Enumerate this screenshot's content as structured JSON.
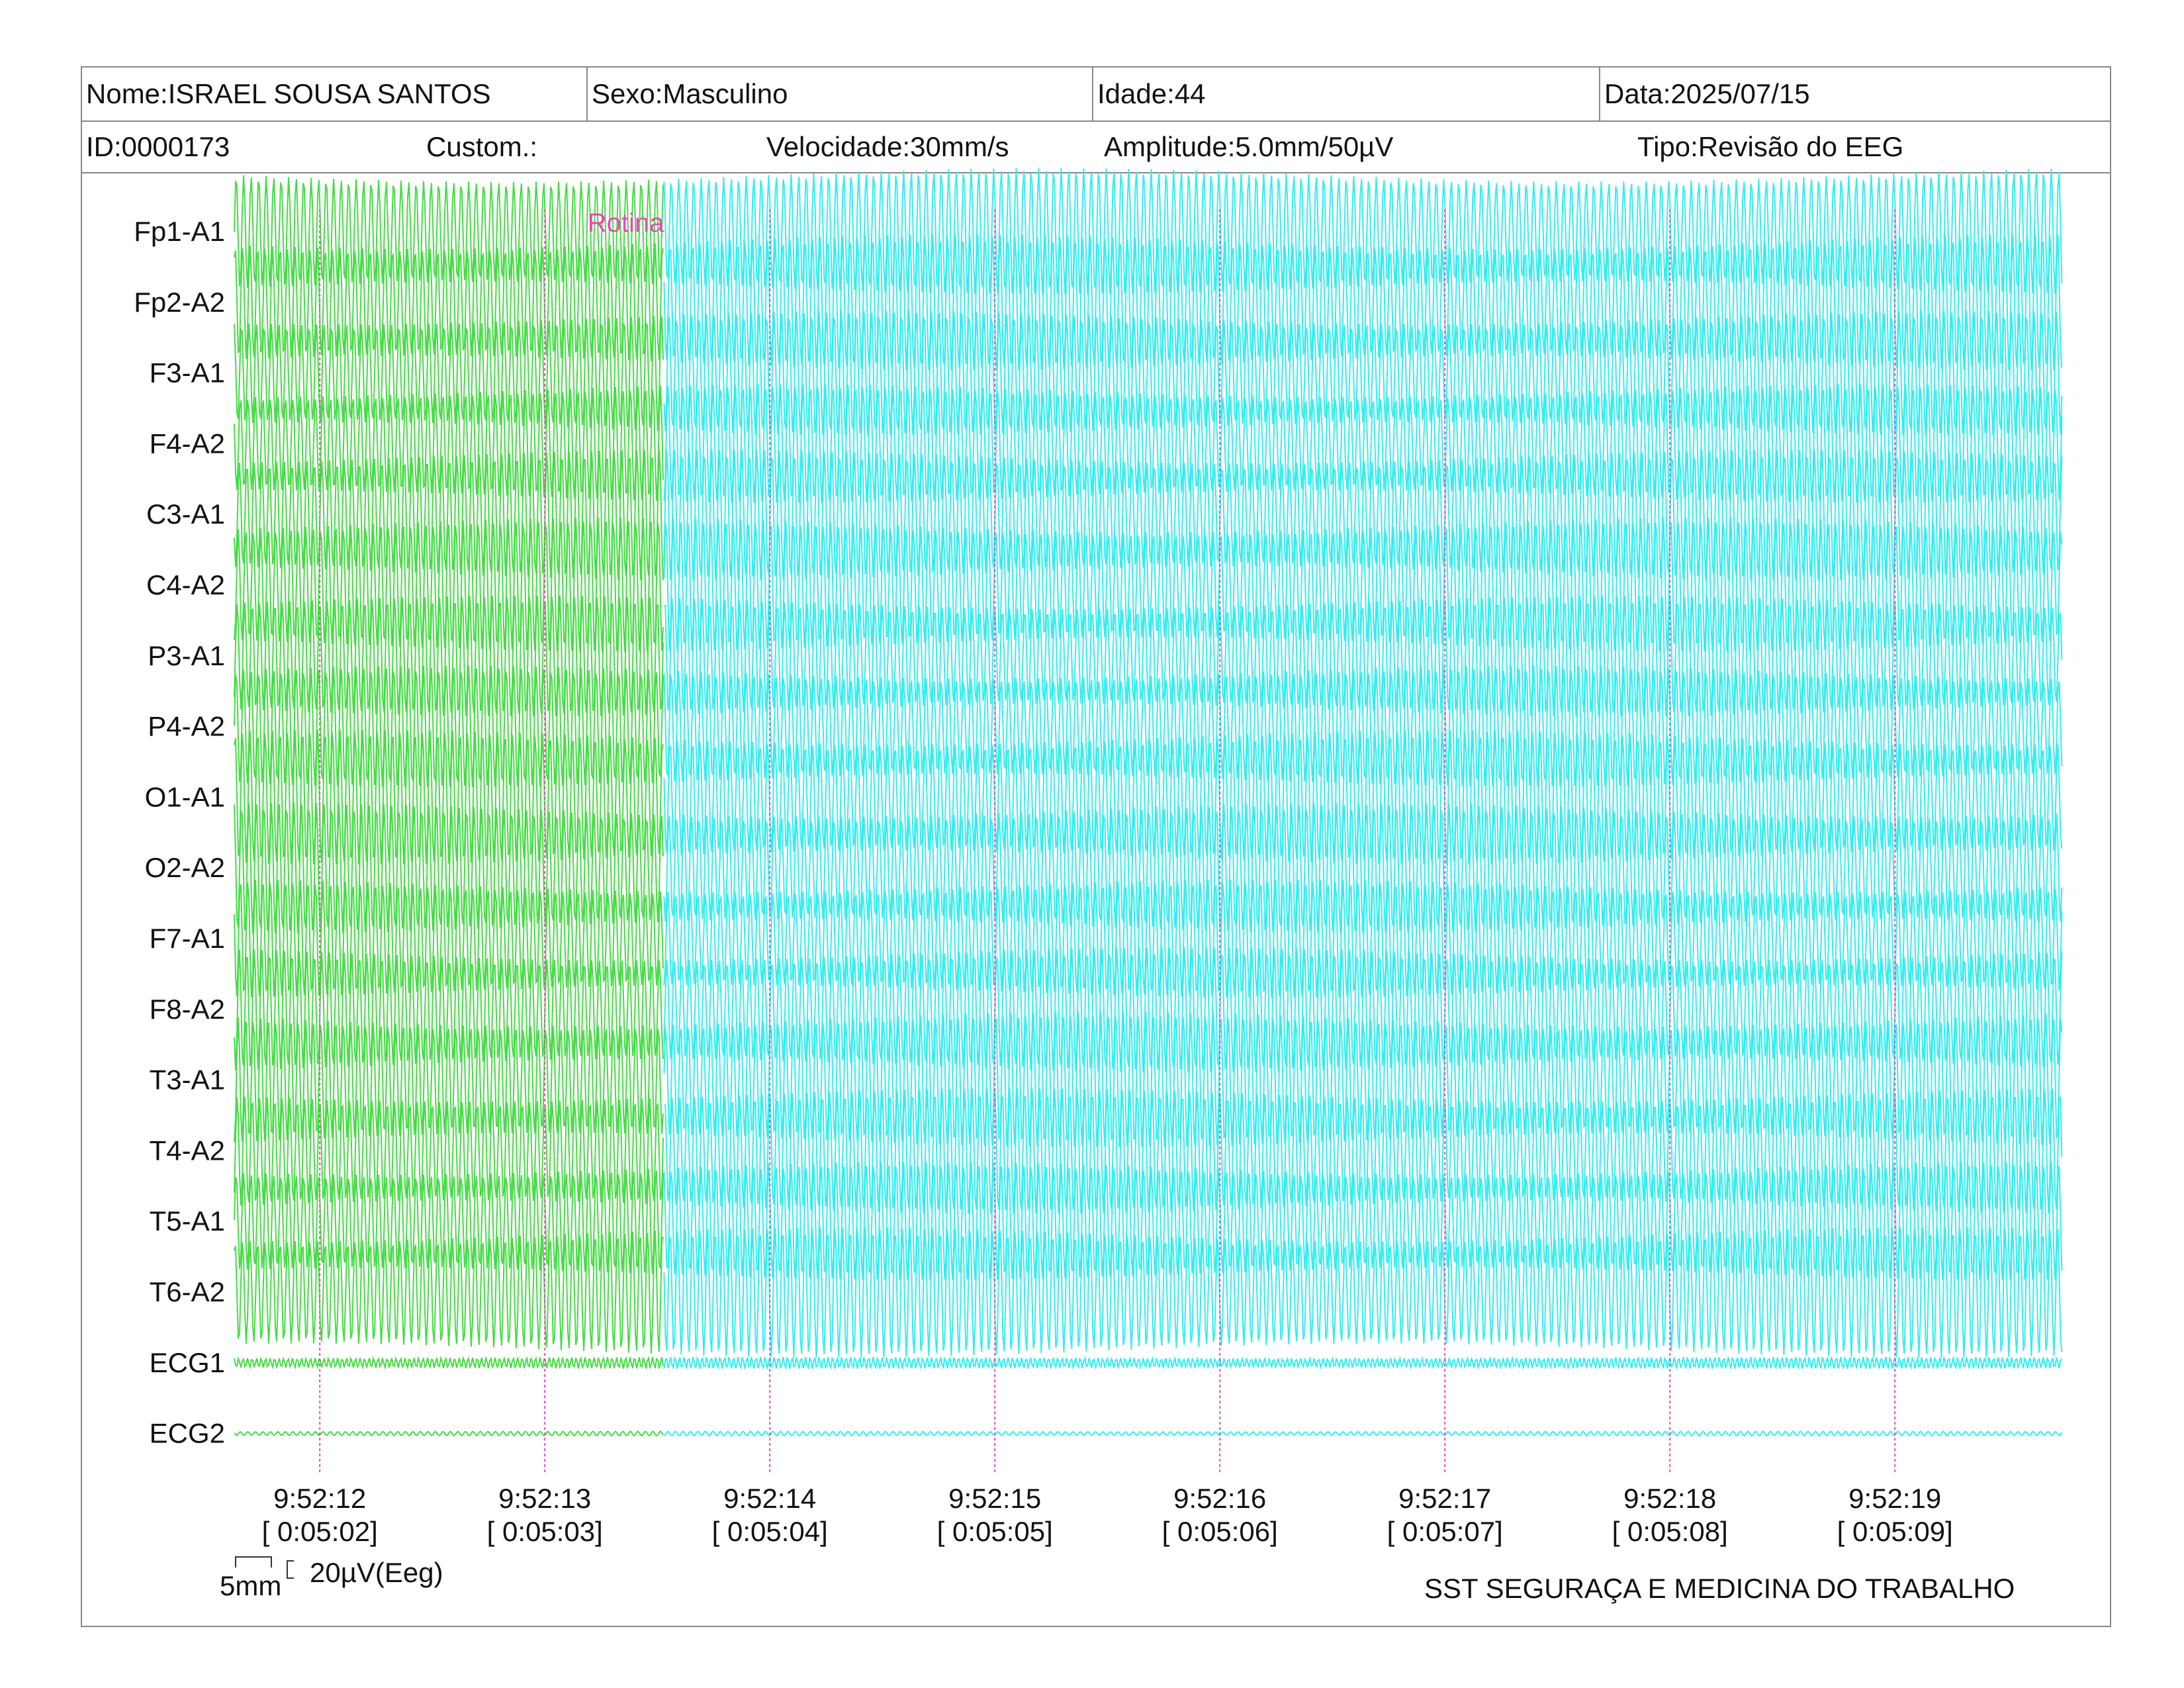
{
  "header": {
    "name": "Nome:ISRAEL SOUSA SANTOS",
    "sex": "Sexo:Masculino",
    "age": "Idade:44",
    "date": "Data:2025/07/15",
    "id": "ID:0000173",
    "custom": "Custom.:",
    "speed": "Velocidade:30mm/s",
    "amplitude": "Amplitude:5.0mm/50µV",
    "type": "Tipo:Revisão do EEG"
  },
  "chart_data": {
    "type": "line",
    "channels": [
      "Fp1-A1",
      "Fp2-A2",
      "F3-A1",
      "F4-A2",
      "C3-A1",
      "C4-A2",
      "P3-A1",
      "P4-A2",
      "O1-A1",
      "O2-A2",
      "F7-A1",
      "F8-A2",
      "T3-A1",
      "T4-A2",
      "T5-A1",
      "T6-A2",
      "ECG1",
      "ECG2"
    ],
    "time_marks": [
      {
        "clock": "9:52:12",
        "elapsed": "[ 0:05:02]"
      },
      {
        "clock": "9:52:13",
        "elapsed": "[ 0:05:03]"
      },
      {
        "clock": "9:52:14",
        "elapsed": "[ 0:05:04]"
      },
      {
        "clock": "9:52:15",
        "elapsed": "[ 0:05:05]"
      },
      {
        "clock": "9:52:16",
        "elapsed": "[ 0:05:06]"
      },
      {
        "clock": "9:52:17",
        "elapsed": "[ 0:05:07]"
      },
      {
        "clock": "9:52:18",
        "elapsed": "[ 0:05:08]"
      },
      {
        "clock": "9:52:19",
        "elapsed": "[ 0:05:09]"
      }
    ],
    "annotation": "Rotina",
    "segment_colors": {
      "before": "#44dd44",
      "after": "#33eeee"
    },
    "marker_color": "#ee44bb",
    "segment_split_time": 4.5,
    "eeg_waveform_hz": 30,
    "ecg1_waveform_hz": 50,
    "ecg2_waveform_hz": 30
  },
  "footer": {
    "scale_time": "5mm",
    "scale_amplitude": "20µV(Eeg)",
    "organization": "SST SEGURAÇA E MEDICINA DO TRABALHO"
  }
}
